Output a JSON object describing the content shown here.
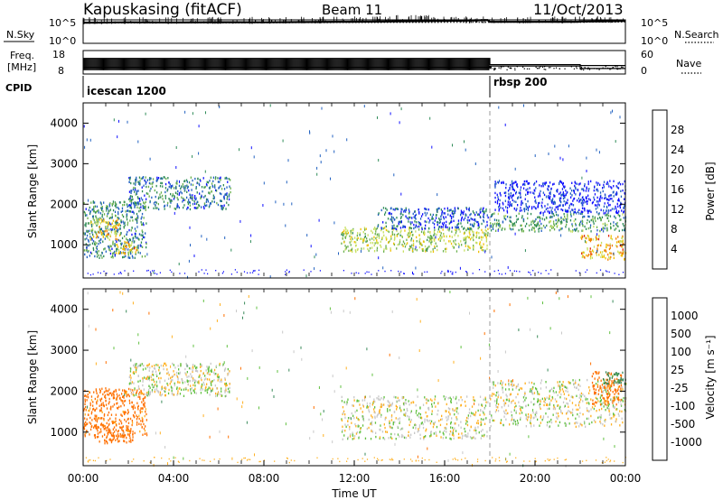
{
  "header": {
    "station": "Kapuskasing (fitACF)",
    "beam": "Beam 11",
    "date": "11/Oct/2013"
  },
  "chart_data": [
    {
      "type": "line",
      "panel": "noise",
      "left_label": "N.Sky",
      "right_label": "N.Search",
      "left_ticks": [
        "10^5",
        "10^0"
      ],
      "right_ticks": [
        "10^5",
        "10^0"
      ],
      "scale": "log",
      "ylim": [
        1,
        100000
      ],
      "series": [
        {
          "name": "N.Sky",
          "style": "solid",
          "x": [
            0,
            2,
            4,
            6,
            8,
            10,
            12,
            14,
            16,
            17.5,
            17.9,
            18,
            20,
            21.9,
            22,
            23,
            24
          ],
          "values": [
            25000,
            30000,
            28000,
            32000,
            30000,
            35000,
            40000,
            50000,
            60000,
            80000,
            90000,
            40000,
            38000,
            40000,
            45000,
            50000,
            60000
          ]
        },
        {
          "name": "N.Search",
          "style": "dotted",
          "x": [
            0,
            6,
            12,
            18,
            22,
            24
          ],
          "values": [
            20000,
            22000,
            26000,
            30000,
            32000,
            35000
          ]
        }
      ]
    },
    {
      "type": "line",
      "panel": "freq_nave",
      "left_label_lines": [
        "Freq.",
        "[MHz]"
      ],
      "right_label": "Nave",
      "left_ticks": [
        "18",
        "8"
      ],
      "right_ticks": [
        "60",
        "0"
      ],
      "freq_ylim": [
        8,
        18
      ],
      "nave_ylim": [
        0,
        60
      ],
      "series": [
        {
          "name": "Freq.",
          "x": [
            0,
            18,
            18,
            22,
            22,
            24
          ],
          "values": [
            10.8,
            10.8,
            11.4,
            11.4,
            11.6,
            11.6
          ]
        },
        {
          "name": "Nave",
          "x": [
            0,
            18,
            18,
            22,
            22,
            24
          ],
          "values": [
            40,
            40,
            24,
            24,
            14,
            14
          ]
        }
      ]
    },
    {
      "type": "table",
      "panel": "cpid",
      "label": "CPID",
      "segments": [
        {
          "name": "icescan 1200",
          "start": 0,
          "end": 18
        },
        {
          "name": "rbsp 200",
          "start": 18,
          "end": 24
        }
      ]
    },
    {
      "type": "heatmap",
      "panel": "power",
      "ylabel": "Slant Range [km]",
      "xlim": [
        0,
        24
      ],
      "ylim": [
        180,
        4500
      ],
      "yticks": [
        1000,
        2000,
        3000,
        4000
      ],
      "colorbar": {
        "label": "Power [dB]",
        "ticks": [
          "4",
          "8",
          "12",
          "16",
          "20",
          "24",
          "28"
        ],
        "range": [
          0,
          30
        ],
        "colors": [
          "#1010ff",
          "#2060c0",
          "#2e8b57",
          "#6ab04c",
          "#c8e060",
          "#f0c000",
          "#f08000",
          "#e02000"
        ]
      },
      "regions": [
        {
          "x": [
            0.0,
            2.8
          ],
          "y": [
            700,
            2100
          ],
          "value": 10
        },
        {
          "x": [
            0.3,
            1.6
          ],
          "y": [
            1150,
            1650
          ],
          "value": 20
        },
        {
          "x": [
            1.4,
            2.4
          ],
          "y": [
            800,
            1100
          ],
          "value": 22
        },
        {
          "x": [
            2.0,
            6.5
          ],
          "y": [
            1900,
            2700
          ],
          "value": 9
        },
        {
          "x": [
            11.4,
            17.9
          ],
          "y": [
            850,
            1450
          ],
          "value": 17
        },
        {
          "x": [
            13.0,
            17.9
          ],
          "y": [
            1400,
            1950
          ],
          "value": 7
        },
        {
          "x": [
            18.0,
            24.0
          ],
          "y": [
            1350,
            1800
          ],
          "value": 12
        },
        {
          "x": [
            18.2,
            24.0
          ],
          "y": [
            1800,
            2600
          ],
          "value": 4
        },
        {
          "x": [
            22.0,
            24.0
          ],
          "y": [
            650,
            1250
          ],
          "value": 22
        }
      ]
    },
    {
      "type": "heatmap",
      "panel": "velocity",
      "xlabel": "Time UT",
      "ylabel": "Slant Range [km]",
      "xlim": [
        0,
        24
      ],
      "ylim": [
        180,
        4500
      ],
      "xticks": [
        "00:00",
        "04:00",
        "08:00",
        "12:00",
        "16:00",
        "20:00",
        "00:00"
      ],
      "yticks": [
        1000,
        2000,
        3000,
        4000
      ],
      "colorbar": {
        "label": "Velocity [m s⁻¹]",
        "ticks": [
          "1000",
          "500",
          "100",
          "25",
          "-25",
          "-100",
          "-500",
          "-1000"
        ],
        "colors": [
          "#2030c0",
          "#2e60a0",
          "#3a8a5a",
          "#60c040",
          "#c8c8c8",
          "#ffb020",
          "#ff7000",
          "#ff2000",
          "#e00000"
        ]
      },
      "regions": [
        {
          "x": [
            0.0,
            2.8
          ],
          "y": [
            900,
            2100
          ],
          "value": -150
        },
        {
          "x": [
            0.5,
            2.2
          ],
          "y": [
            750,
            1200
          ],
          "value": -400
        },
        {
          "x": [
            2.0,
            6.5
          ],
          "y": [
            1900,
            2700
          ],
          "value": 0
        },
        {
          "x": [
            11.4,
            17.9
          ],
          "y": [
            850,
            1900
          ],
          "value": 0
        },
        {
          "x": [
            18.0,
            24.0
          ],
          "y": [
            1150,
            2300
          ],
          "value": 0
        },
        {
          "x": [
            22.5,
            23.8
          ],
          "y": [
            1700,
            2500
          ],
          "value": -300
        },
        {
          "x": [
            23.0,
            24.0
          ],
          "y": [
            2200,
            2500
          ],
          "value": 150
        }
      ]
    }
  ]
}
